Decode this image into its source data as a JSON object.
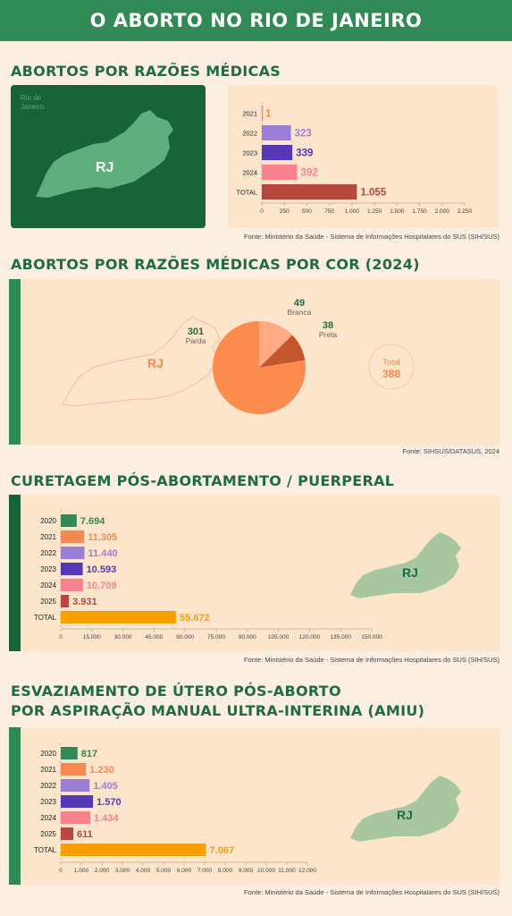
{
  "page_title": "O aborto no Rio de Janeiro",
  "colors": {
    "green_dark": "#186338",
    "green": "#2f8a55",
    "title": "#1f6b43",
    "panel": "#fde5cc",
    "bg": "#fcefe2"
  },
  "map_label": "RJ",
  "section1": {
    "title": "Abortos por razões médicas",
    "map_caption": "Rio de Janeiro",
    "source": "Fonte: Ministério da Saúde - Sistema de Informações Hospitalares do SUS (SIH/SUS)"
  },
  "section2": {
    "title": "Abortos por razões médicas por cor (2024)",
    "total_label": "Total",
    "total_value": "388",
    "source": "Fonte: SIHSUS/DATASUS, 2024"
  },
  "section3": {
    "title": "Curetagem pós-abortamento / puerperal",
    "source": "Fonte: Ministério da Saúde - Sistema de Informações Hospitalares do SUS (SIH/SUS)"
  },
  "section4": {
    "title_line1": "Esvaziamento de útero pós-aborto",
    "title_line2": "por aspiração manual ultra-interina (AMIU)",
    "source": "Fonte: Ministério da Saúde - Sistema de Informações Hospitalares do SUS (SIH/SUS)"
  },
  "chart_data": [
    {
      "type": "bar",
      "orientation": "horizontal",
      "categories": [
        "2021",
        "2022",
        "2023",
        "2024",
        "TOTAL"
      ],
      "values": [
        1,
        323,
        339,
        392,
        1055
      ],
      "value_labels": [
        "1",
        "323",
        "339",
        "392",
        "1.055"
      ],
      "colors": [
        "#f58a50",
        "#9a7fd6",
        "#5538b5",
        "#f8818c",
        "#b5473f"
      ],
      "xlim": [
        0,
        2250
      ],
      "xticks": [
        0,
        250,
        500,
        750,
        1000,
        1250,
        1500,
        1750,
        2000,
        2250
      ],
      "xtick_labels": [
        "0",
        "250",
        "500",
        "750",
        "1.000",
        "1.250",
        "1.500",
        "1.750",
        "2.000",
        "2.250"
      ]
    },
    {
      "type": "pie",
      "slices": [
        {
          "name": "Parda",
          "value": 301,
          "color": "#fc8c4e"
        },
        {
          "name": "Branca",
          "value": 49,
          "color": "#fdaa85"
        },
        {
          "name": "Preta",
          "value": 38,
          "color": "#c4562b"
        }
      ]
    },
    {
      "type": "bar",
      "orientation": "horizontal",
      "categories": [
        "2020",
        "2021",
        "2022",
        "2023",
        "2024",
        "2025",
        "TOTAL"
      ],
      "values": [
        7694,
        11305,
        11440,
        10593,
        10709,
        3931,
        55672
      ],
      "value_labels": [
        "7.694",
        "11.305",
        "11.440",
        "10.593",
        "10.709",
        "3.931",
        "55.672"
      ],
      "colors": [
        "#2f8a55",
        "#f58a50",
        "#9a7fd6",
        "#5538b5",
        "#f8818c",
        "#b5473f",
        "#f8a000"
      ],
      "xlim": [
        0,
        150000
      ],
      "xticks": [
        0,
        15000,
        30000,
        45000,
        60000,
        75000,
        90000,
        105000,
        120000,
        135000,
        150000
      ],
      "xtick_labels": [
        "0",
        "15.000",
        "30.000",
        "45.000",
        "60.000",
        "75.000",
        "90.000",
        "105.000",
        "120.000",
        "135.000",
        "150.000"
      ]
    },
    {
      "type": "bar",
      "orientation": "horizontal",
      "categories": [
        "2020",
        "2021",
        "2022",
        "2023",
        "2024",
        "2025",
        "TOTAL"
      ],
      "values": [
        817,
        1230,
        1405,
        1570,
        1434,
        611,
        7067
      ],
      "value_labels": [
        "817",
        "1.230",
        "1.405",
        "1.570",
        "1.434",
        "611",
        "7.067"
      ],
      "colors": [
        "#2f8a55",
        "#f58a50",
        "#9a7fd6",
        "#5538b5",
        "#f8818c",
        "#b5473f",
        "#f8a000"
      ],
      "xlim": [
        0,
        12000
      ],
      "xticks": [
        0,
        1000,
        2000,
        3000,
        4000,
        5000,
        6000,
        7000,
        8000,
        9000,
        10000,
        11000,
        12000
      ],
      "xtick_labels": [
        "0",
        "1.000",
        "2.000",
        "3.000",
        "4.000",
        "5.000",
        "6.000",
        "7.000",
        "8.000",
        "9.000",
        "10.000",
        "11.000",
        "12.000"
      ]
    }
  ]
}
